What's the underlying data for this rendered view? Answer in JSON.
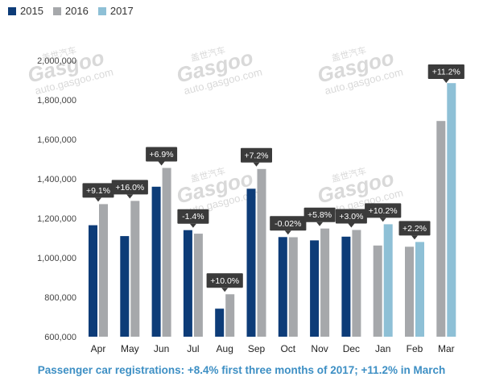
{
  "legend": [
    {
      "name": "2015",
      "color": "#0d3c78"
    },
    {
      "name": "2016",
      "color": "#a6a8ab"
    },
    {
      "name": "2017",
      "color": "#8ec0d6"
    }
  ],
  "caption": "Passenger car registrations: +8.4% first three months of 2017; +11.2% in March",
  "watermark": {
    "cn": "盖世汽车",
    "brand": "Gasgoo",
    "url": "auto.gasgoo.com"
  },
  "chart_data": {
    "type": "bar",
    "categories": [
      "Apr",
      "May",
      "Jun",
      "Jul",
      "Aug",
      "Sep",
      "Oct",
      "Nov",
      "Dec",
      "Jan",
      "Feb",
      "Mar"
    ],
    "series": [
      {
        "name": "2015",
        "color": "#0d3c78",
        "values": [
          1165000,
          1110000,
          1360000,
          1140000,
          742000,
          1350000,
          1105000,
          1088000,
          1107000,
          null,
          null,
          null
        ]
      },
      {
        "name": "2016",
        "color": "#a6a8ab",
        "values": [
          1272000,
          1288000,
          1455000,
          1122000,
          815000,
          1450000,
          1104000,
          1148000,
          1141000,
          1062000,
          1056000,
          1693000
        ]
      },
      {
        "name": "2017",
        "color": "#8ec0d6",
        "values": [
          null,
          null,
          null,
          null,
          null,
          null,
          null,
          null,
          null,
          1170000,
          1080000,
          1885000
        ]
      }
    ],
    "annotations": [
      "+9.1%",
      "+16.0%",
      "+6.9%",
      "-1.4%",
      "+10.0%",
      "+7.2%",
      "-0.02%",
      "+5.8%",
      "+3.0%",
      "+10.2%",
      "+2.2%",
      "+11.2%"
    ],
    "ylim": [
      600000,
      2000000
    ],
    "yticks": [
      600000,
      800000,
      1000000,
      1200000,
      1400000,
      1600000,
      1800000,
      2000000
    ],
    "ytick_labels": [
      "600,000",
      "800,000",
      "1,000,000",
      "1,200,000",
      "1,400,000",
      "1,600,000",
      "1,800,000",
      "2,000,000"
    ],
    "legend_position": "top-left",
    "grid": false
  }
}
